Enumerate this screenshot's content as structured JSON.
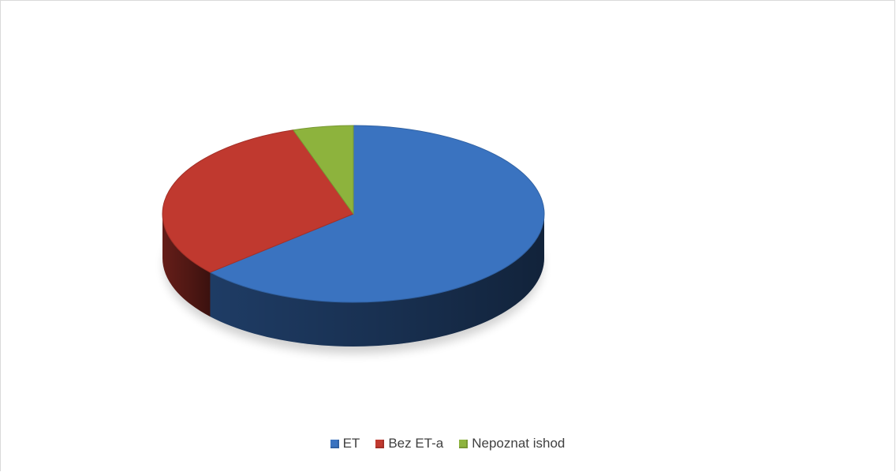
{
  "chart_data": {
    "type": "pie",
    "title": "",
    "three_d": true,
    "legend_position": "bottom",
    "categories": [
      "ET",
      "Bez ET-a",
      "Nepoznat ishod"
    ],
    "values": [
      63.5,
      31.4,
      5.1
    ],
    "colors": [
      "#3a73c0",
      "#c0392f",
      "#8db33d"
    ]
  }
}
